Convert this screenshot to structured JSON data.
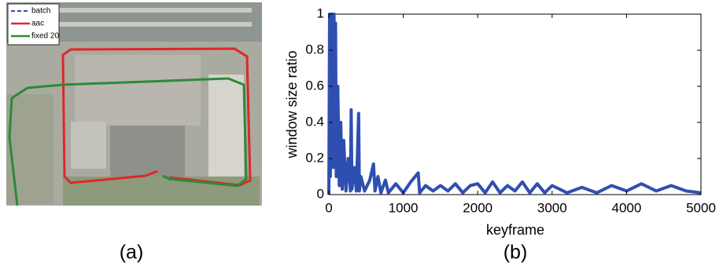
{
  "figure_a": {
    "caption": "(a)",
    "legend": [
      "batch",
      "aac",
      "fixed 20"
    ]
  },
  "chart_data": {
    "type": "line",
    "caption": "(b)",
    "xlabel": "keyframe",
    "ylabel": "window size ratio",
    "x": [
      0,
      10,
      20,
      30,
      40,
      50,
      60,
      70,
      80,
      90,
      100,
      120,
      140,
      160,
      180,
      200,
      230,
      260,
      290,
      300,
      310,
      340,
      370,
      400,
      410,
      430,
      480,
      550,
      600,
      620,
      660,
      700,
      760,
      800,
      900,
      1000,
      1100,
      1200,
      1220,
      1300,
      1400,
      1500,
      1600,
      1700,
      1800,
      1900,
      2000,
      2100,
      2200,
      2300,
      2400,
      2500,
      2600,
      2700,
      2800,
      2900,
      3000,
      3200,
      3400,
      3600,
      3800,
      4000,
      4200,
      4400,
      4600,
      4800,
      5000
    ],
    "series": [
      {
        "color": "#2f4fb0",
        "values": [
          0,
          1,
          0.1,
          1,
          0.2,
          1,
          0.15,
          1,
          0.2,
          0.95,
          0.1,
          0.6,
          0.05,
          0.4,
          0.03,
          0.3,
          0.02,
          0.2,
          0.02,
          0.47,
          0.03,
          0.15,
          0.02,
          0.45,
          0.02,
          0.1,
          0.02,
          0.08,
          0.17,
          0.02,
          0.1,
          0.01,
          0.08,
          0.01,
          0.06,
          0.01,
          0.07,
          0.12,
          0.01,
          0.05,
          0.02,
          0.05,
          0.02,
          0.06,
          0.01,
          0.05,
          0.06,
          0.01,
          0.07,
          0.01,
          0.05,
          0.02,
          0.07,
          0.01,
          0.06,
          0.01,
          0.05,
          0.01,
          0.04,
          0.01,
          0.05,
          0.02,
          0.06,
          0.02,
          0.05,
          0.02,
          0.01
        ]
      }
    ],
    "xlim": [
      0,
      5000
    ],
    "xticks": [
      0,
      1000,
      2000,
      3000,
      4000,
      5000
    ],
    "ylim": [
      0,
      1
    ],
    "yticks": [
      0,
      0.2,
      0.4,
      0.6,
      0.8,
      1
    ]
  }
}
